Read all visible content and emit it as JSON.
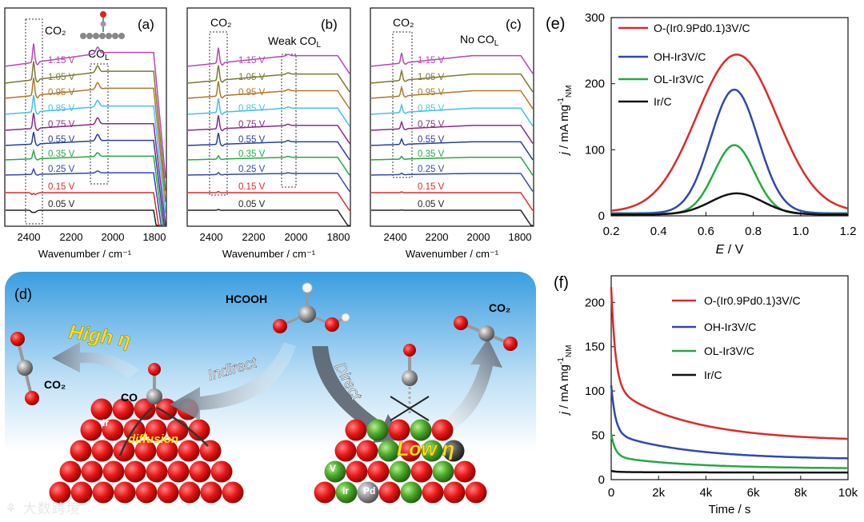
{
  "ftir": {
    "xlabel": "Wavenumber / cm⁻¹",
    "ticks": [
      "2400",
      "2200",
      "2000",
      "1800"
    ],
    "potentials": [
      "0.05 V",
      "0.15 V",
      "0.25 V",
      "0.35 V",
      "0.55 V",
      "0.75 V",
      "0.85 V",
      "0.95 V",
      "1.05 V",
      "1.15 V"
    ],
    "colors": [
      "#222222",
      "#e02828",
      "#3048b0",
      "#27a844",
      "#2a3f9a",
      "#8a2a8a",
      "#45c0ea",
      "#b0762a",
      "#7a7a30",
      "#b845b8"
    ],
    "panels": [
      {
        "letter": "(a)",
        "co2": "CO₂",
        "co_label": "CO",
        "co_sub": "L",
        "co_prefix": "",
        "peak": [
          0.6,
          1.0,
          1.6,
          2.4,
          3.6,
          4.6,
          5.0,
          5.3,
          5.5,
          5.6
        ],
        "co_peak": [
          0,
          0,
          0.3,
          0.6,
          1.0,
          1.0,
          1.0,
          1.0,
          1.0,
          1.0
        ]
      },
      {
        "letter": "(b)",
        "co2": "CO₂",
        "co_label": "CO",
        "co_sub": "L",
        "co_prefix": "Weak ",
        "peak": [
          0.2,
          0.3,
          0.6,
          1.0,
          3.4,
          4.0,
          4.2,
          4.4,
          4.5,
          4.6
        ],
        "co_peak": [
          0,
          0,
          0.1,
          0.15,
          0.2,
          0.2,
          0.2,
          0.2,
          0.2,
          0.2
        ]
      },
      {
        "letter": "(c)",
        "co2": "CO₂",
        "co_label": "CO",
        "co_sub": "L",
        "co_prefix": "No ",
        "peak": [
          0.1,
          0.2,
          0.4,
          0.8,
          1.6,
          2.0,
          2.2,
          2.6,
          2.8,
          3.0
        ],
        "co_peak": [
          0,
          0,
          0,
          0,
          0,
          0,
          0,
          0,
          0,
          0
        ]
      }
    ]
  },
  "chart_data": [
    {
      "type": "line",
      "panel": "(e)",
      "xlabel": "E / V",
      "ylabel": "j / mA mg⁻¹ NM",
      "xlim": [
        0.2,
        1.2
      ],
      "ylim": [
        0,
        300
      ],
      "xticks": [
        "0.2",
        "0.4",
        "0.6",
        "0.8",
        "1.0",
        "1.2"
      ],
      "yticks": [
        "0",
        "100",
        "200",
        "300"
      ],
      "series": [
        {
          "name": "O-(Ir0.9Pd0.1)3V/C",
          "color": "#e02828",
          "peak": 244,
          "center": 0.73,
          "width": 0.17,
          "base": 6
        },
        {
          "name": "OH-Ir3V/C",
          "color": "#3048b0",
          "peak": 191,
          "center": 0.72,
          "width": 0.1,
          "base": 4
        },
        {
          "name": "OL-Ir3V/C",
          "color": "#27a844",
          "peak": 107,
          "center": 0.72,
          "width": 0.085,
          "base": 3
        },
        {
          "name": "Ir/C",
          "color": "#111111",
          "peak": 34,
          "center": 0.73,
          "width": 0.11,
          "base": 2
        }
      ]
    },
    {
      "type": "line",
      "panel": "(f)",
      "xlabel": "Time / s",
      "ylabel": "j / mA mg⁻¹ NM",
      "xlim": [
        0,
        10000
      ],
      "ylim": [
        0,
        230
      ],
      "xticks": [
        "0",
        "2k",
        "4k",
        "6k",
        "8k",
        "10k"
      ],
      "yticks": [
        "0",
        "50",
        "100",
        "150",
        "200"
      ],
      "series": [
        {
          "name": "O-(Ir0.9Pd0.1)3V/C",
          "color": "#e02828",
          "start": 220,
          "end": 46
        },
        {
          "name": "OH-Ir3V/C",
          "color": "#3048b0",
          "start": 108,
          "end": 24
        },
        {
          "name": "OL-Ir3V/C",
          "color": "#27a844",
          "start": 52,
          "end": 13
        },
        {
          "name": "Ir/C",
          "color": "#111111",
          "start": 10,
          "end": 8
        }
      ]
    }
  ],
  "scheme": {
    "letter": "(d)",
    "hcooh": "HCOOH",
    "high_eta": "High η",
    "low_eta": "Low η",
    "indirect": "Indirect",
    "direct": "Direct",
    "co": "CO",
    "co2_left": "CO₂",
    "co2_right": "CO₂",
    "diffusion": "diffusion",
    "ir": "Ir",
    "ir2": "Ir",
    "pd": "Pd",
    "v": "V"
  },
  "watermark": "大数跨境"
}
